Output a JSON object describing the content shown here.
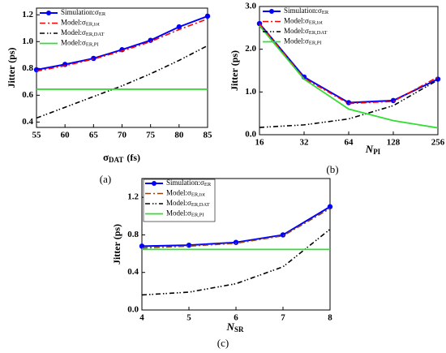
{
  "chart_data": [
    {
      "type": "line",
      "caption": "(a)",
      "xlabel": {
        "main": "σ",
        "sub": "DAT",
        "after": "(fs)"
      },
      "ylabel": "Jitter (ps)",
      "x": [
        55,
        60,
        65,
        70,
        75,
        80,
        85
      ],
      "xlim": [
        55,
        85
      ],
      "xticks": [
        55,
        60,
        65,
        70,
        75,
        80,
        85
      ],
      "ylim": [
        0.36,
        1.25
      ],
      "yticks": [
        0.4,
        0.6,
        0.8,
        {
          "value": 1,
          "label": "1.0"
        },
        1.2
      ],
      "series": [
        {
          "name": "Simulation:σ",
          "name_sub": "ER",
          "color": "#0000ff",
          "values": [
            0.79,
            0.83,
            0.875,
            0.94,
            1.01,
            1.11,
            1.19
          ]
        },
        {
          "name": "Model:σ",
          "name_sub": "ER,tot",
          "color": "#ff0000",
          "values": [
            0.78,
            0.82,
            0.87,
            0.93,
            1.0,
            1.09,
            1.17
          ]
        },
        {
          "name": "Model:σ",
          "name_sub": "ER,DAT",
          "color": "#000000",
          "values": [
            0.43,
            0.51,
            0.59,
            0.67,
            0.76,
            0.86,
            0.97
          ]
        },
        {
          "name": "Model:σ",
          "name_sub": "ER,PI",
          "color": "#33dd33",
          "values": [
            0.645,
            0.645,
            0.645,
            0.645,
            0.645,
            0.645,
            0.645
          ]
        }
      ]
    },
    {
      "type": "line",
      "caption": "(b)",
      "log_x": true,
      "xlabel": {
        "main": "N",
        "sub": "PI",
        "after": ""
      },
      "ylabel": "Jitter (ps)",
      "x": [
        16,
        32,
        64,
        128,
        256
      ],
      "xlim": [
        16,
        256
      ],
      "xticks": [
        16,
        32,
        64,
        128,
        256
      ],
      "ylim": [
        0,
        3
      ],
      "yticks": [
        {
          "value": 0,
          "label": "0.0"
        },
        {
          "value": 1,
          "label": "1.0"
        },
        {
          "value": 2,
          "label": "2.0"
        },
        {
          "value": 3,
          "label": "3.0"
        }
      ],
      "series": [
        {
          "name": "Simulation:σ",
          "name_sub": "ER",
          "color": "#0000ff",
          "values": [
            2.6,
            1.35,
            0.75,
            0.8,
            1.3
          ]
        },
        {
          "name": "Model:σ",
          "name_sub": "ER,tot",
          "color": "#ff0000",
          "values": [
            2.6,
            1.32,
            0.73,
            0.78,
            1.35
          ]
        },
        {
          "name": "Model:σ",
          "name_sub": "ER,DAT",
          "color": "#000000",
          "values": [
            0.17,
            0.23,
            0.37,
            0.68,
            1.28
          ]
        },
        {
          "name": "Model:σ",
          "name_sub": "ER,PI",
          "color": "#33dd33",
          "values": [
            2.55,
            1.3,
            0.6,
            0.33,
            0.16
          ]
        }
      ]
    },
    {
      "type": "line",
      "caption": "(c)",
      "xlabel": {
        "main": "N",
        "sub": "SR",
        "after": ""
      },
      "ylabel": "Jitter (ps)",
      "x": [
        4,
        5,
        6,
        7,
        8
      ],
      "xlim": [
        4,
        8
      ],
      "xticks": [
        4,
        5,
        6,
        7,
        8
      ],
      "ylim": [
        0,
        1.4
      ],
      "yticks": [
        {
          "value": 0,
          "label": "0.0"
        },
        0.4,
        0.8,
        1.2
      ],
      "series": [
        {
          "name": "Simulation:σ",
          "name_sub": "ER",
          "color": "#0000ff",
          "values": [
            0.68,
            0.69,
            0.72,
            0.8,
            1.1
          ]
        },
        {
          "name": "Model:σ",
          "name_sub": "ER,tot",
          "color": "#8b4513",
          "values": [
            0.66,
            0.68,
            0.71,
            0.79,
            1.08
          ]
        },
        {
          "name": "Model:σ",
          "name_sub": "ER,DAT",
          "color": "#000000",
          "values": [
            0.16,
            0.19,
            0.28,
            0.46,
            0.86
          ]
        },
        {
          "name": "Model:σ",
          "name_sub": "ER,PI",
          "color": "#33dd33",
          "values": [
            0.645,
            0.645,
            0.645,
            0.645,
            0.645
          ]
        }
      ]
    }
  ]
}
